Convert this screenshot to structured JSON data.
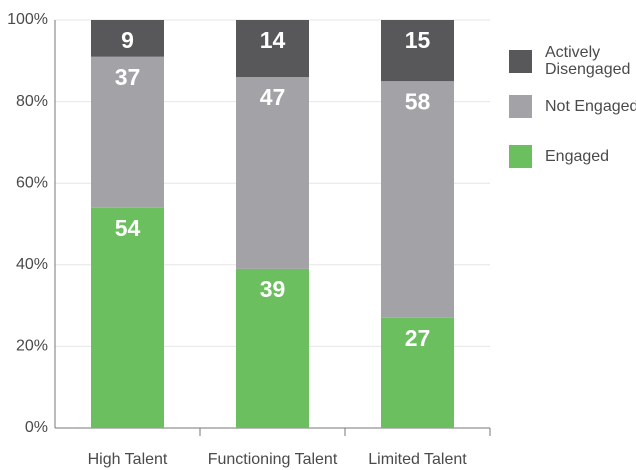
{
  "chart_data": {
    "type": "stacked_bar",
    "categories": [
      "High Talent",
      "Functioning Talent",
      "Limited Talent"
    ],
    "series": [
      {
        "name": "Engaged",
        "color": "#6cbf5e",
        "values": [
          54,
          39,
          27
        ]
      },
      {
        "name": "Not Engaged",
        "color": "#a3a3a7",
        "values": [
          37,
          47,
          58
        ]
      },
      {
        "name": "Actively Disengaged",
        "color": "#58585a",
        "values": [
          9,
          14,
          15
        ]
      }
    ],
    "ylim": [
      0,
      100
    ],
    "yticks": [
      {
        "value": 0,
        "label": "0%"
      },
      {
        "value": 20,
        "label": "20%"
      },
      {
        "value": 40,
        "label": "40%"
      },
      {
        "value": 60,
        "label": "60%"
      },
      {
        "value": 80,
        "label": "80%"
      },
      {
        "value": 100,
        "label": "100%"
      }
    ],
    "grid": true,
    "legend": "right"
  }
}
